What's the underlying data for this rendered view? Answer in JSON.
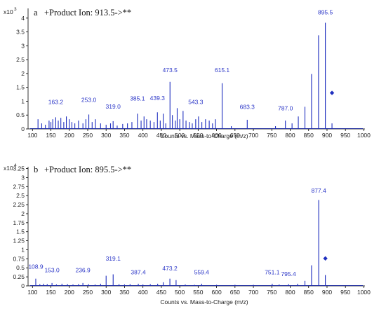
{
  "colors": {
    "peak": "#1f2fbf",
    "label": "#2a35c7",
    "marker": "#1f2fbf",
    "axis": "#000000"
  },
  "chart_data": [
    {
      "type": "bar",
      "panel_letter": "a",
      "title": "+Product  Ion: 913.5->**",
      "xlabel": "Counts vs. Mass-to-Charge (m/z)",
      "ylabel": "",
      "y_scale_base": "x10",
      "y_scale_exp": "3",
      "xlim": [
        88,
        1003
      ],
      "ylim": [
        0,
        4.35
      ],
      "xticks": [
        100,
        150,
        200,
        250,
        300,
        350,
        400,
        450,
        500,
        550,
        600,
        650,
        700,
        750,
        800,
        850,
        900,
        950,
        1000
      ],
      "yticks": [
        "0",
        "0.5",
        "1",
        "1.5",
        "2",
        "2.5",
        "3",
        "3.5",
        "4"
      ],
      "ytick_values": [
        0,
        0.5,
        1,
        1.5,
        2,
        2.5,
        3,
        3.5,
        4
      ],
      "grid": false,
      "peaks": [
        {
          "x": 115,
          "y": 0.35
        },
        {
          "x": 125,
          "y": 0.2
        },
        {
          "x": 135,
          "y": 0.15
        },
        {
          "x": 145,
          "y": 0.3
        },
        {
          "x": 150,
          "y": 0.25
        },
        {
          "x": 155,
          "y": 0.35
        },
        {
          "x": 163.2,
          "y": 0.42
        },
        {
          "x": 170,
          "y": 0.3
        },
        {
          "x": 177,
          "y": 0.4
        },
        {
          "x": 185,
          "y": 0.25
        },
        {
          "x": 192,
          "y": 0.45
        },
        {
          "x": 200,
          "y": 0.35
        },
        {
          "x": 207,
          "y": 0.25
        },
        {
          "x": 215,
          "y": 0.2
        },
        {
          "x": 225,
          "y": 0.3
        },
        {
          "x": 237,
          "y": 0.2
        },
        {
          "x": 245,
          "y": 0.35
        },
        {
          "x": 253,
          "y": 0.52
        },
        {
          "x": 262,
          "y": 0.25
        },
        {
          "x": 271,
          "y": 0.35
        },
        {
          "x": 285,
          "y": 0.2
        },
        {
          "x": 300,
          "y": 0.15
        },
        {
          "x": 312,
          "y": 0.2
        },
        {
          "x": 319,
          "y": 0.28
        },
        {
          "x": 330,
          "y": 0.12
        },
        {
          "x": 345,
          "y": 0.18
        },
        {
          "x": 358,
          "y": 0.2
        },
        {
          "x": 370,
          "y": 0.25
        },
        {
          "x": 385.1,
          "y": 0.55
        },
        {
          "x": 395,
          "y": 0.3
        },
        {
          "x": 403,
          "y": 0.45
        },
        {
          "x": 410,
          "y": 0.35
        },
        {
          "x": 420,
          "y": 0.3
        },
        {
          "x": 430,
          "y": 0.25
        },
        {
          "x": 439.3,
          "y": 0.6
        },
        {
          "x": 447,
          "y": 0.3
        },
        {
          "x": 455,
          "y": 0.55
        },
        {
          "x": 462,
          "y": 0.2
        },
        {
          "x": 473.5,
          "y": 1.7
        },
        {
          "x": 480,
          "y": 0.5
        },
        {
          "x": 488,
          "y": 0.3
        },
        {
          "x": 493,
          "y": 0.75
        },
        {
          "x": 500,
          "y": 0.35
        },
        {
          "x": 509,
          "y": 0.65
        },
        {
          "x": 517,
          "y": 0.3
        },
        {
          "x": 526,
          "y": 0.25
        },
        {
          "x": 534,
          "y": 0.2
        },
        {
          "x": 543.3,
          "y": 0.35
        },
        {
          "x": 551,
          "y": 0.45
        },
        {
          "x": 560,
          "y": 0.25
        },
        {
          "x": 570,
          "y": 0.35
        },
        {
          "x": 580,
          "y": 0.3
        },
        {
          "x": 589,
          "y": 0.2
        },
        {
          "x": 597,
          "y": 0.35
        },
        {
          "x": 615.1,
          "y": 1.65
        },
        {
          "x": 640,
          "y": 0.1
        },
        {
          "x": 683.3,
          "y": 0.33
        },
        {
          "x": 760,
          "y": 0.1
        },
        {
          "x": 787,
          "y": 0.3
        },
        {
          "x": 805,
          "y": 0.2
        },
        {
          "x": 822,
          "y": 0.45
        },
        {
          "x": 840,
          "y": 0.8
        },
        {
          "x": 858,
          "y": 1.98
        },
        {
          "x": 877,
          "y": 3.38
        },
        {
          "x": 895.5,
          "y": 3.83
        },
        {
          "x": 913.5,
          "y": 0.2
        }
      ],
      "labels": [
        {
          "text": "163.2",
          "x": 163.2,
          "y": 0.9
        },
        {
          "text": "253.0",
          "x": 253,
          "y": 0.98
        },
        {
          "text": "319.0",
          "x": 319,
          "y": 0.73
        },
        {
          "text": "385.1",
          "x": 385.1,
          "y": 1.02
        },
        {
          "text": "439.3",
          "x": 439.3,
          "y": 1.04
        },
        {
          "text": "473.5",
          "x": 473.5,
          "y": 2.05
        },
        {
          "text": "615.1",
          "x": 615.1,
          "y": 2.05
        },
        {
          "text": "543.3",
          "x": 543.3,
          "y": 0.9
        },
        {
          "text": "683.3",
          "x": 683.3,
          "y": 0.72
        },
        {
          "text": "787.0",
          "x": 787,
          "y": 0.67
        },
        {
          "text": "895.5",
          "x": 895.5,
          "y": 4.13
        }
      ],
      "precursor_marker": {
        "x": 913.5,
        "y": 1.3
      }
    },
    {
      "type": "bar",
      "panel_letter": "b",
      "title": "+Product  Ion: 895.5->**",
      "xlabel": "Counts vs. Mass-to-Charge (m/z)",
      "ylabel": "",
      "y_scale_base": "x10",
      "y_scale_exp": "4",
      "xlim": [
        88,
        1003
      ],
      "ylim": [
        0,
        3.3
      ],
      "xticks": [
        100,
        150,
        200,
        250,
        300,
        350,
        400,
        450,
        500,
        550,
        600,
        650,
        700,
        750,
        800,
        850,
        900,
        950,
        1000
      ],
      "yticks": [
        "0",
        "0.25",
        "0.5",
        "0.75",
        "1",
        "1.25",
        "1.5",
        "1.75",
        "2",
        "2.25",
        "2.5",
        "2.75",
        "3",
        "3.25"
      ],
      "ytick_values": [
        0,
        0.25,
        0.5,
        0.75,
        1,
        1.25,
        1.5,
        1.75,
        2,
        2.25,
        2.5,
        2.75,
        3,
        3.25
      ],
      "grid": false,
      "peaks": [
        {
          "x": 108.9,
          "y": 0.2
        },
        {
          "x": 120,
          "y": 0.05
        },
        {
          "x": 130,
          "y": 0.06
        },
        {
          "x": 140,
          "y": 0.05
        },
        {
          "x": 153,
          "y": 0.08
        },
        {
          "x": 165,
          "y": 0.04
        },
        {
          "x": 180,
          "y": 0.06
        },
        {
          "x": 195,
          "y": 0.05
        },
        {
          "x": 210,
          "y": 0.04
        },
        {
          "x": 225,
          "y": 0.05
        },
        {
          "x": 236.9,
          "y": 0.08
        },
        {
          "x": 252,
          "y": 0.05
        },
        {
          "x": 270,
          "y": 0.04
        },
        {
          "x": 285,
          "y": 0.06
        },
        {
          "x": 300,
          "y": 0.28
        },
        {
          "x": 319.1,
          "y": 0.32
        },
        {
          "x": 335,
          "y": 0.05
        },
        {
          "x": 350,
          "y": 0.04
        },
        {
          "x": 365,
          "y": 0.05
        },
        {
          "x": 387.4,
          "y": 0.06
        },
        {
          "x": 400,
          "y": 0.04
        },
        {
          "x": 420,
          "y": 0.05
        },
        {
          "x": 440,
          "y": 0.06
        },
        {
          "x": 455,
          "y": 0.1
        },
        {
          "x": 473.2,
          "y": 0.2
        },
        {
          "x": 490,
          "y": 0.16
        },
        {
          "x": 515,
          "y": 0.04
        },
        {
          "x": 540,
          "y": 0.03
        },
        {
          "x": 559.4,
          "y": 0.06
        },
        {
          "x": 600,
          "y": 0.03
        },
        {
          "x": 650,
          "y": 0.03
        },
        {
          "x": 700,
          "y": 0.03
        },
        {
          "x": 751.1,
          "y": 0.06
        },
        {
          "x": 770,
          "y": 0.04
        },
        {
          "x": 795.4,
          "y": 0.05
        },
        {
          "x": 820,
          "y": 0.06
        },
        {
          "x": 840,
          "y": 0.14
        },
        {
          "x": 858,
          "y": 0.57
        },
        {
          "x": 877.4,
          "y": 2.38
        },
        {
          "x": 895.5,
          "y": 0.3
        }
      ],
      "labels": [
        {
          "text": "108.9",
          "x": 108.9,
          "y": 0.48
        },
        {
          "text": "153.0",
          "x": 153,
          "y": 0.38
        },
        {
          "text": "236.9",
          "x": 236.9,
          "y": 0.38
        },
        {
          "text": "319.1",
          "x": 319.1,
          "y": 0.7
        },
        {
          "text": "387.4",
          "x": 387.4,
          "y": 0.32
        },
        {
          "text": "473.2",
          "x": 473.2,
          "y": 0.43
        },
        {
          "text": "559.4",
          "x": 559.4,
          "y": 0.32
        },
        {
          "text": "751.1",
          "x": 751.1,
          "y": 0.32
        },
        {
          "text": "795.4",
          "x": 795.4,
          "y": 0.27
        },
        {
          "text": "877.4",
          "x": 877.4,
          "y": 2.58
        }
      ],
      "precursor_marker": {
        "x": 895.5,
        "y": 0.76
      }
    }
  ]
}
